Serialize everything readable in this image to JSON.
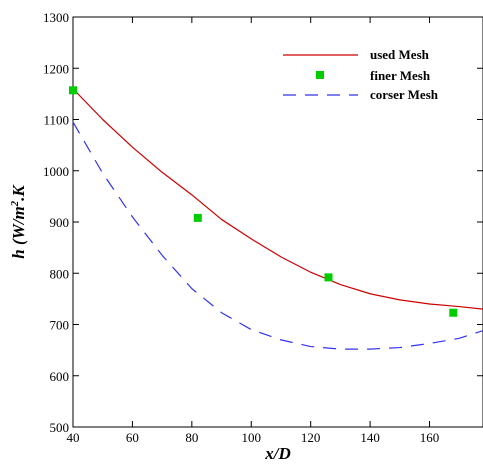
{
  "chart_data": {
    "type": "line",
    "title": "",
    "xlabel": "x/D",
    "ylabel_parts": {
      "pre": "h (W/m",
      "sup": "2",
      "post": ".K"
    },
    "xlim": [
      40,
      178
    ],
    "ylim": [
      500,
      1300
    ],
    "xticks": [
      40,
      60,
      80,
      100,
      120,
      140,
      160
    ],
    "yticks": [
      500,
      600,
      700,
      800,
      900,
      1000,
      1100,
      1200,
      1300
    ],
    "grid": false,
    "legend_position": "top-right",
    "series": [
      {
        "name": "used Mesh",
        "style": "line",
        "color": "#cc0000",
        "x": [
          40,
          50,
          60,
          70,
          80,
          90,
          100,
          110,
          120,
          130,
          140,
          150,
          160,
          170,
          178
        ],
        "y": [
          1160,
          1100,
          1046,
          997,
          953,
          905,
          867,
          832,
          802,
          778,
          760,
          748,
          740,
          735,
          730
        ]
      },
      {
        "name": "finer Mesh",
        "style": "marker",
        "color": "#00cc00",
        "x": [
          40,
          82,
          126,
          168
        ],
        "y": [
          1157,
          908,
          792,
          723
        ]
      },
      {
        "name": "corser Mesh",
        "style": "dashed",
        "color": "#3333ee",
        "x": [
          40,
          50,
          60,
          70,
          80,
          90,
          100,
          110,
          120,
          130,
          140,
          150,
          160,
          170,
          178
        ],
        "y": [
          1095,
          995,
          910,
          835,
          770,
          723,
          690,
          670,
          657,
          652,
          652,
          655,
          663,
          673,
          688
        ]
      }
    ]
  }
}
